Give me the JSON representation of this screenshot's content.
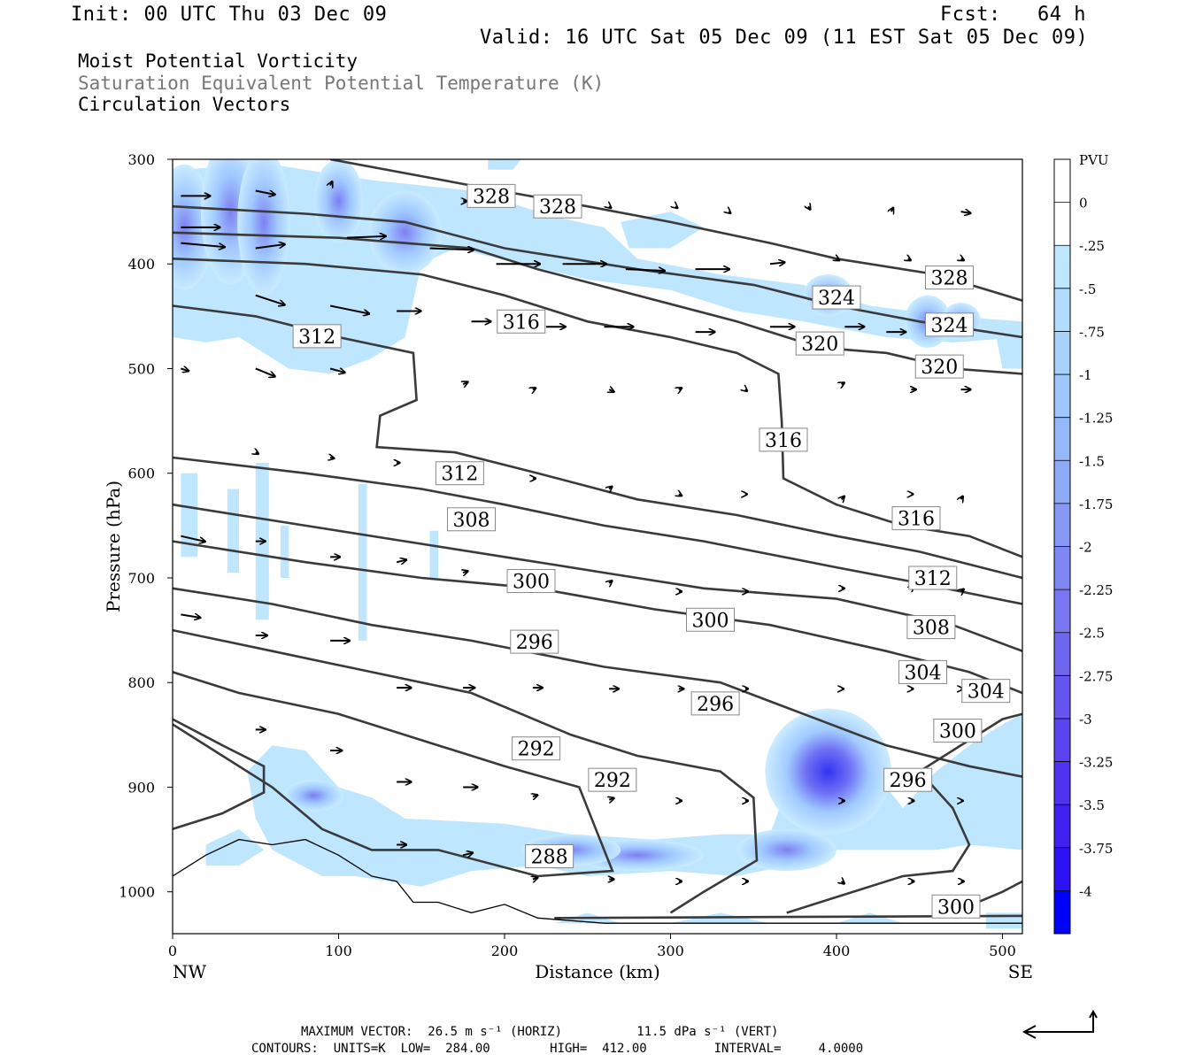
{
  "header": {
    "init": "Init: 00 UTC Thu 03 Dec 09",
    "fcst": "Fcst:   64 h",
    "valid": "Valid: 16 UTC Sat 05 Dec 09 (11 EST Sat 05 Dec 09)"
  },
  "titles": [
    "Moist Potential Vorticity",
    "Saturation Equivalent Potential Temperature (K)",
    "Circulation Vectors"
  ],
  "footer": {
    "max_vector": "MAXIMUM VECTOR:  26.5 m s⁻¹ (HORIZ)          11.5 dPa s⁻¹ (VERT)",
    "contours": "CONTOURS:  UNITS=K  LOW=  284.00        HIGH=  412.00         INTERVAL=     4.0000"
  },
  "colors": {
    "contour": "#3a3a3a",
    "pv_light": "#bfe6ff",
    "pv_deep": "#0000ff"
  },
  "chart_data": {
    "type": "heatmap",
    "xlabel": "Distance (km)",
    "ylabel": "Pressure (hPa)",
    "xlim": [
      0,
      512
    ],
    "ylim": [
      1040,
      300
    ],
    "x_ticks": [
      0,
      100,
      200,
      300,
      400,
      500
    ],
    "y_ticks": [
      300,
      400,
      500,
      600,
      700,
      800,
      900,
      1000
    ],
    "x_end_labels": {
      "left": "NW",
      "right": "SE"
    },
    "colorbar": {
      "unit": "PVU",
      "labels": [
        "0",
        "-.25",
        "-.5",
        "-.75",
        "-1",
        "-1.25",
        "-1.5",
        "-1.75",
        "-2",
        "-2.25",
        "-2.5",
        "-2.75",
        "-3",
        "-3.25",
        "-3.5",
        "-3.75",
        "-4"
      ]
    },
    "contour_labels": [
      {
        "v": "328",
        "x": 192,
        "p": 335
      },
      {
        "v": "328",
        "x": 232,
        "p": 345
      },
      {
        "v": "328",
        "x": 468,
        "p": 413
      },
      {
        "v": "324",
        "x": 400,
        "p": 432
      },
      {
        "v": "324",
        "x": 468,
        "p": 458
      },
      {
        "v": "320",
        "x": 390,
        "p": 476
      },
      {
        "v": "320",
        "x": 462,
        "p": 498
      },
      {
        "v": "316",
        "x": 210,
        "p": 455
      },
      {
        "v": "316",
        "x": 368,
        "p": 568
      },
      {
        "v": "316",
        "x": 448,
        "p": 643
      },
      {
        "v": "312",
        "x": 87,
        "p": 469
      },
      {
        "v": "312",
        "x": 173,
        "p": 600
      },
      {
        "v": "312",
        "x": 458,
        "p": 700
      },
      {
        "v": "308",
        "x": 180,
        "p": 644
      },
      {
        "v": "308",
        "x": 457,
        "p": 747
      },
      {
        "v": "304",
        "x": 452,
        "p": 790
      },
      {
        "v": "304",
        "x": 490,
        "p": 808
      },
      {
        "v": "300",
        "x": 216,
        "p": 703
      },
      {
        "v": "300",
        "x": 324,
        "p": 740
      },
      {
        "v": "300",
        "x": 473,
        "p": 846
      },
      {
        "v": "300",
        "x": 472,
        "p": 1014
      },
      {
        "v": "296",
        "x": 218,
        "p": 761
      },
      {
        "v": "296",
        "x": 327,
        "p": 820
      },
      {
        "v": "296",
        "x": 443,
        "p": 893
      },
      {
        "v": "292",
        "x": 219,
        "p": 863
      },
      {
        "v": "292",
        "x": 265,
        "p": 893
      },
      {
        "v": "288",
        "x": 227,
        "p": 966
      }
    ]
  }
}
